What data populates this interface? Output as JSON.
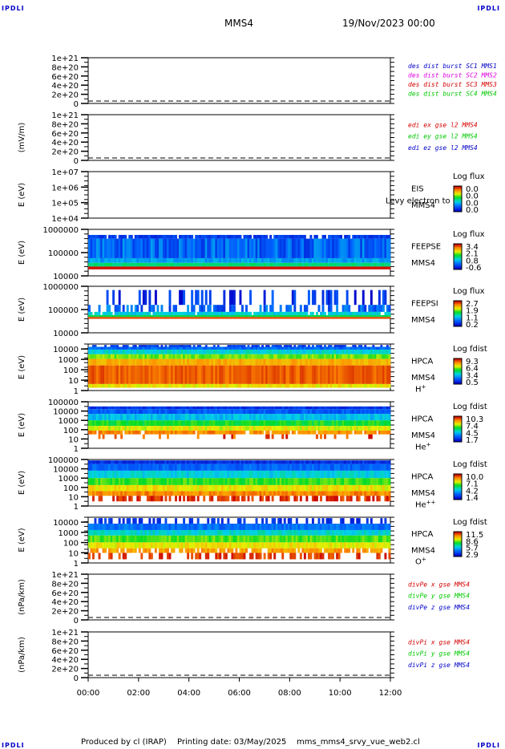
{
  "header": {
    "corner_label": "IPDLI",
    "spacecraft": "MMS4",
    "date": "19/Nov/2023 00:00"
  },
  "footer": {
    "producer": "Produced by cl (IRAP)",
    "printing_date": "Printing date: 03/May/2025",
    "script_name": "mms_mms4_srvy_vue_web2.cl"
  },
  "time_axis": {
    "ticks": [
      "00:00",
      "02:00",
      "04:00",
      "06:00",
      "08:00",
      "10:00",
      "12:00"
    ]
  },
  "colors": {
    "red": "#d40000",
    "magenta": "#e000e0",
    "green": "#00c800",
    "blue": "#0000c8"
  },
  "chart_data": [
    {
      "type": "line",
      "panel": "des dist burst",
      "ylabel": "",
      "yticks": [
        "1e+21",
        "8e+20",
        "6e+20",
        "4e+20",
        "2e+20",
        "0"
      ],
      "ylim": [
        0,
        1e+21
      ],
      "zero_line": "dashed",
      "series": [
        {
          "name": "des dist burst SC1 MMS1",
          "color": "#0000c8",
          "values": []
        },
        {
          "name": "des dist burst SC2 MMS2",
          "color": "#e000e0",
          "values": []
        },
        {
          "name": "des dist burst SC3 MMS3",
          "color": "#d40000",
          "values": []
        },
        {
          "name": "des dist burst SC4 MMS4",
          "color": "#00c800",
          "values": []
        }
      ]
    },
    {
      "type": "line",
      "panel": "edi e gse",
      "ylabel": "(mV/m)",
      "yticks": [
        "1e+21",
        "8e+20",
        "6e+20",
        "4e+20",
        "2e+20",
        "0"
      ],
      "ylim": [
        0,
        1e+21
      ],
      "zero_line": "dashed",
      "series": [
        {
          "name": "edi ex gse l2 MMS4",
          "color": "#d40000",
          "values": []
        },
        {
          "name": "edi ey gse l2 MMS4",
          "color": "#00c800",
          "values": []
        },
        {
          "name": "edi ez gse l2 MMS4",
          "color": "#0000c8",
          "values": []
        }
      ]
    },
    {
      "type": "heatmap",
      "panel": "EIS",
      "ylabel": "E (eV)",
      "yticks": [
        "1e+07",
        "1e+06",
        "1e+05",
        "1e+04"
      ],
      "ylim": [
        10000,
        10000000
      ],
      "yscale": "log",
      "instrument": "EIS",
      "spacecraft_label": "MMS4",
      "overlay_text": "Levy electron to",
      "colorbar": {
        "title": "Log flux",
        "ticks": [
          "0.0",
          "0.0",
          "0.0",
          "0.0"
        ]
      },
      "pattern": "empty"
    },
    {
      "type": "heatmap",
      "panel": "FEEPSE",
      "ylabel": "E (eV)",
      "yticks": [
        "1000000",
        "100000",
        "10000"
      ],
      "ylim": [
        10000,
        1000000
      ],
      "yscale": "log",
      "instrument": "FEEPSE",
      "spacecraft_label": "MMS4",
      "colorbar": {
        "title": "Log flux",
        "ticks": [
          "3.4",
          "2.1",
          "0.8",
          "-0.6"
        ]
      },
      "pattern": "feepse"
    },
    {
      "type": "heatmap",
      "panel": "FEEPSI",
      "ylabel": "E (eV)",
      "yticks": [
        "1000000",
        "100000",
        "10000"
      ],
      "ylim": [
        10000,
        1000000
      ],
      "yscale": "log",
      "instrument": "FEEPSI",
      "spacecraft_label": "MMS4",
      "colorbar": {
        "title": "Log flux",
        "ticks": [
          "2.7",
          "1.9",
          "1.1",
          "0.2"
        ]
      },
      "pattern": "feepsi"
    },
    {
      "type": "heatmap",
      "panel": "HPCA H+",
      "ylabel": "E (eV)",
      "yticks": [
        "10000",
        "1000",
        "100",
        "10",
        "1"
      ],
      "ylim": [
        1,
        30000
      ],
      "yscale": "log",
      "instrument": "HPCA",
      "spacecraft_label": "MMS4",
      "species": "H",
      "species_sup": "+",
      "colorbar": {
        "title": "Log fdist",
        "ticks": [
          "9.3",
          "6.4",
          "3.4",
          "0.5"
        ]
      },
      "pattern": "hplus"
    },
    {
      "type": "heatmap",
      "panel": "HPCA He+",
      "ylabel": "E (eV)",
      "yticks": [
        "100000",
        "10000",
        "1000",
        "100",
        "10",
        "1"
      ],
      "ylim": [
        1,
        100000
      ],
      "yscale": "log",
      "instrument": "HPCA",
      "spacecraft_label": "MMS4",
      "species": "He",
      "species_sup": "+",
      "colorbar": {
        "title": "Log fdist",
        "ticks": [
          "10.3",
          "7.4",
          "4.5",
          "1.7"
        ]
      },
      "pattern": "heplus"
    },
    {
      "type": "heatmap",
      "panel": "HPCA He++",
      "ylabel": "E (eV)",
      "yticks": [
        "100000",
        "10000",
        "1000",
        "100",
        "10",
        "1"
      ],
      "ylim": [
        1,
        100000
      ],
      "yscale": "log",
      "instrument": "HPCA",
      "spacecraft_label": "MMS4",
      "species": "He",
      "species_sup": "++",
      "colorbar": {
        "title": "Log fdist",
        "ticks": [
          "10.0",
          "7.1",
          "4.2",
          "1.4"
        ]
      },
      "pattern": "heplusplus"
    },
    {
      "type": "heatmap",
      "panel": "HPCA O+",
      "ylabel": "E (eV)",
      "yticks": [
        "10000",
        "1000",
        "100",
        "10",
        "1"
      ],
      "ylim": [
        1,
        30000
      ],
      "yscale": "log",
      "instrument": "HPCA",
      "spacecraft_label": "MMS4",
      "species": "O",
      "species_sup": "+",
      "colorbar": {
        "title": "Log fdist",
        "ticks": [
          "11.5",
          "8.6",
          "5.7",
          "2.9"
        ]
      },
      "pattern": "oplus"
    },
    {
      "type": "line",
      "panel": "divPe gse",
      "ylabel": "(nPa/km)",
      "yticks": [
        "1e+21",
        "8e+20",
        "6e+20",
        "4e+20",
        "2e+20",
        "0"
      ],
      "ylim": [
        0,
        1e+21
      ],
      "zero_line": "dashed",
      "series": [
        {
          "name": "divPe x gse MMS4",
          "color": "#d40000",
          "values": []
        },
        {
          "name": "divPe y gse MMS4",
          "color": "#00c800",
          "values": []
        },
        {
          "name": "divPe z gse MMS4",
          "color": "#0000c8",
          "values": []
        }
      ]
    },
    {
      "type": "line",
      "panel": "divPi gse",
      "ylabel": "(nPa/km)",
      "yticks": [
        "1e+21",
        "8e+20",
        "6e+20",
        "4e+20",
        "2e+20",
        "0"
      ],
      "ylim": [
        0,
        1e+21
      ],
      "zero_line": "dashed",
      "series": [
        {
          "name": "divPi x gse MMS4",
          "color": "#d40000",
          "values": []
        },
        {
          "name": "divPi y gse MMS4",
          "color": "#00c800",
          "values": []
        },
        {
          "name": "divPi z gse MMS4",
          "color": "#0000c8",
          "values": []
        }
      ]
    }
  ]
}
